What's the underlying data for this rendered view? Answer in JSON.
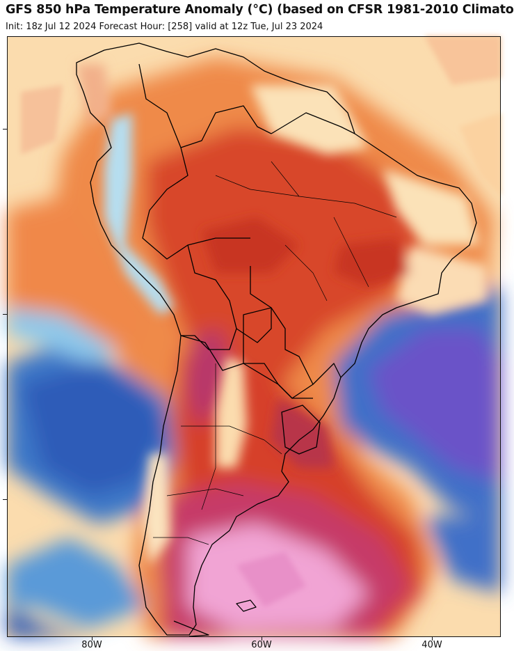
{
  "header": {
    "title": "GFS 850 hPa Temperature Anomaly (°C) (based on CFSR 1981-2010 Climato",
    "subtitle": "Init: 18z Jul 12 2024   Forecast Hour: [258]   valid at 12z Tue, Jul 23 2024"
  },
  "map": {
    "region": "South America",
    "field": "850 hPa temperature anomaly",
    "lon_labels": [
      "80W",
      "60W",
      "40W"
    ],
    "colors": {
      "very_warm": "#f4a0d4",
      "warm_magenta": "#c93a6e",
      "warm_red": "#d8402a",
      "warm_orange": "#ef7a3c",
      "slight_warm": "#fbd7a4",
      "near_zero": "#fdf2dc",
      "slight_cool": "#a9dbf0",
      "cool": "#4a90d0",
      "cold": "#2f55b8",
      "very_cold": "#6a4fc8",
      "border": "#000000"
    }
  }
}
